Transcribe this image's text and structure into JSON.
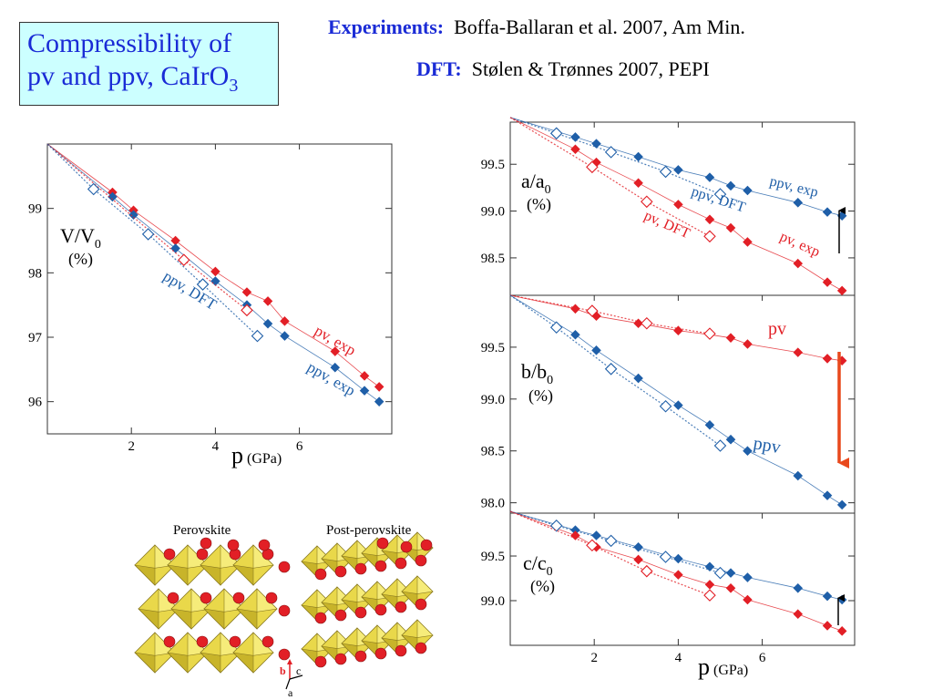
{
  "title": {
    "main": "Compressibility of",
    "line2_prefix": "pv and ppv, CaIrO",
    "line2_sub": "3"
  },
  "refs": {
    "exp_key": "Experiments:",
    "exp_text": "Boffa-Ballaran et al. 2007, Am Min.",
    "dft_key": "DFT:",
    "dft_text": "Stølen & Trønnes 2007, PEPI"
  },
  "colors": {
    "pv": "#e21f26",
    "ppv": "#1f5fa8",
    "frame": "#333333"
  },
  "structure": {
    "left_label": "Perovskite",
    "right_label": "Post-perovskite",
    "axes": {
      "b": "b",
      "c": "c",
      "a": "a"
    }
  },
  "chart_data": [
    {
      "type": "scatter",
      "id": "volume",
      "ylabel_main": "V/V",
      "ylabel_sub": "0",
      "ylabel_unit": "(%)",
      "xlabel_main": "p",
      "xlabel_unit": "(GPa)",
      "xlim": [
        0,
        8.2
      ],
      "ylim": [
        95.5,
        100.0
      ],
      "xticks": [
        2,
        4,
        6
      ],
      "yticks": [
        96,
        97,
        98,
        99
      ],
      "annotations": [
        "pv, exp",
        "ppv, exp",
        "ppv, DFT"
      ],
      "series": [
        {
          "name": "pv, exp",
          "kind": "exp",
          "color": "pv",
          "points": [
            [
              1.55,
              99.25
            ],
            [
              2.05,
              98.97
            ],
            [
              3.05,
              98.5
            ],
            [
              4.0,
              98.02
            ],
            [
              4.75,
              97.7
            ],
            [
              5.25,
              97.56
            ],
            [
              5.65,
              97.25
            ],
            [
              6.85,
              96.78
            ],
            [
              7.55,
              96.4
            ],
            [
              7.9,
              96.23
            ]
          ]
        },
        {
          "name": "ppv, exp",
          "kind": "exp",
          "color": "ppv",
          "points": [
            [
              1.55,
              99.18
            ],
            [
              2.05,
              98.9
            ],
            [
              3.05,
              98.38
            ],
            [
              4.0,
              97.87
            ],
            [
              4.75,
              97.5
            ],
            [
              5.25,
              97.21
            ],
            [
              5.65,
              97.02
            ],
            [
              6.85,
              96.53
            ],
            [
              7.55,
              96.17
            ],
            [
              7.9,
              96.0
            ]
          ]
        },
        {
          "name": "pv, DFT",
          "kind": "dft",
          "color": "pv",
          "points": [
            [
              3.25,
              98.2
            ],
            [
              4.75,
              97.42
            ]
          ]
        },
        {
          "name": "ppv, DFT",
          "kind": "dft",
          "color": "ppv",
          "points": [
            [
              1.1,
              99.3
            ],
            [
              2.4,
              98.6
            ],
            [
              3.7,
              97.82
            ],
            [
              5.0,
              97.02
            ]
          ]
        }
      ]
    },
    {
      "type": "scatter",
      "id": "a-axis",
      "ylabel_main": "a/a",
      "ylabel_sub": "0",
      "ylabel_unit": "(%)",
      "xlim": [
        0,
        8.2
      ],
      "ylim": [
        98.1,
        99.95
      ],
      "yticks": [
        98.5,
        99.0,
        99.5
      ],
      "annotations": [
        "ppv, exp",
        "ppv, DFT",
        "pv, DFT",
        "pv, exp"
      ],
      "series": [
        {
          "name": "ppv, exp",
          "kind": "exp",
          "color": "ppv",
          "points": [
            [
              1.55,
              99.79
            ],
            [
              2.05,
              99.72
            ],
            [
              3.05,
              99.58
            ],
            [
              4.0,
              99.44
            ],
            [
              4.75,
              99.36
            ],
            [
              5.25,
              99.27
            ],
            [
              5.65,
              99.22
            ],
            [
              6.85,
              99.09
            ],
            [
              7.55,
              98.99
            ],
            [
              7.9,
              98.95
            ]
          ]
        },
        {
          "name": "pv, exp",
          "kind": "exp",
          "color": "pv",
          "points": [
            [
              1.55,
              99.66
            ],
            [
              2.05,
              99.52
            ],
            [
              3.05,
              99.3
            ],
            [
              4.0,
              99.07
            ],
            [
              4.75,
              98.91
            ],
            [
              5.25,
              98.82
            ],
            [
              5.65,
              98.67
            ],
            [
              6.85,
              98.44
            ],
            [
              7.55,
              98.24
            ],
            [
              7.9,
              98.15
            ]
          ]
        },
        {
          "name": "ppv, DFT",
          "kind": "dft",
          "color": "ppv",
          "points": [
            [
              1.1,
              99.83
            ],
            [
              2.4,
              99.63
            ],
            [
              3.7,
              99.42
            ],
            [
              5.0,
              99.18
            ]
          ]
        },
        {
          "name": "pv, DFT",
          "kind": "dft",
          "color": "pv",
          "points": [
            [
              1.95,
              99.47
            ],
            [
              3.25,
              99.1
            ],
            [
              4.75,
              98.73
            ]
          ]
        }
      ]
    },
    {
      "type": "scatter",
      "id": "b-axis",
      "ylabel_main": "b/b",
      "ylabel_sub": "0",
      "ylabel_unit": "(%)",
      "xlim": [
        0,
        8.2
      ],
      "ylim": [
        97.9,
        100.0
      ],
      "yticks": [
        98.0,
        98.5,
        99.0,
        99.5
      ],
      "annotations": [
        "pv",
        "ppv"
      ],
      "series": [
        {
          "name": "pv, exp",
          "kind": "exp",
          "color": "pv",
          "points": [
            [
              1.55,
              99.87
            ],
            [
              2.05,
              99.8
            ],
            [
              3.05,
              99.73
            ],
            [
              4.0,
              99.66
            ],
            [
              4.75,
              99.62
            ],
            [
              5.25,
              99.59
            ],
            [
              5.65,
              99.53
            ],
            [
              6.85,
              99.45
            ],
            [
              7.55,
              99.39
            ],
            [
              7.9,
              99.37
            ]
          ]
        },
        {
          "name": "ppv, exp",
          "kind": "exp",
          "color": "ppv",
          "points": [
            [
              1.55,
              99.62
            ],
            [
              2.05,
              99.47
            ],
            [
              3.05,
              99.2
            ],
            [
              4.0,
              98.94
            ],
            [
              4.75,
              98.75
            ],
            [
              5.25,
              98.61
            ],
            [
              5.65,
              98.5
            ],
            [
              6.85,
              98.26
            ],
            [
              7.55,
              98.07
            ],
            [
              7.9,
              97.98
            ]
          ]
        },
        {
          "name": "pv, DFT",
          "kind": "dft",
          "color": "pv",
          "points": [
            [
              1.95,
              99.85
            ],
            [
              3.25,
              99.73
            ],
            [
              4.75,
              99.63
            ]
          ]
        },
        {
          "name": "ppv, DFT",
          "kind": "dft",
          "color": "ppv",
          "points": [
            [
              1.1,
              99.69
            ],
            [
              2.4,
              99.29
            ],
            [
              3.7,
              98.93
            ],
            [
              5.0,
              98.55
            ]
          ]
        }
      ]
    },
    {
      "type": "scatter",
      "id": "c-axis",
      "ylabel_main": "c/c",
      "ylabel_sub": "0",
      "ylabel_unit": "(%)",
      "xlabel_main": "p",
      "xlabel_unit": "(GPa)",
      "xlim": [
        0,
        8.2
      ],
      "ylim": [
        98.5,
        99.98
      ],
      "xticks": [
        2,
        4,
        6
      ],
      "yticks": [
        99.0,
        99.5
      ],
      "annotations": [],
      "series": [
        {
          "name": "ppv, exp",
          "kind": "exp",
          "color": "ppv",
          "points": [
            [
              1.55,
              99.79
            ],
            [
              2.05,
              99.73
            ],
            [
              3.05,
              99.6
            ],
            [
              4.0,
              99.47
            ],
            [
              4.75,
              99.38
            ],
            [
              5.25,
              99.31
            ],
            [
              5.65,
              99.26
            ],
            [
              6.85,
              99.14
            ],
            [
              7.55,
              99.05
            ],
            [
              7.9,
              99.01
            ]
          ]
        },
        {
          "name": "pv, exp",
          "kind": "exp",
          "color": "pv",
          "points": [
            [
              1.55,
              99.73
            ],
            [
              2.05,
              99.6
            ],
            [
              3.05,
              99.46
            ],
            [
              4.0,
              99.29
            ],
            [
              4.75,
              99.18
            ],
            [
              5.25,
              99.14
            ],
            [
              5.65,
              99.01
            ],
            [
              6.85,
              98.85
            ],
            [
              7.55,
              98.72
            ],
            [
              7.9,
              98.66
            ]
          ]
        },
        {
          "name": "ppv, DFT",
          "kind": "dft",
          "color": "ppv",
          "points": [
            [
              1.1,
              99.84
            ],
            [
              2.4,
              99.67
            ],
            [
              3.7,
              99.49
            ],
            [
              5.0,
              99.31
            ]
          ]
        },
        {
          "name": "pv, DFT",
          "kind": "dft",
          "color": "pv",
          "points": [
            [
              1.95,
              99.62
            ],
            [
              3.25,
              99.33
            ],
            [
              4.75,
              99.06
            ]
          ]
        }
      ]
    }
  ]
}
